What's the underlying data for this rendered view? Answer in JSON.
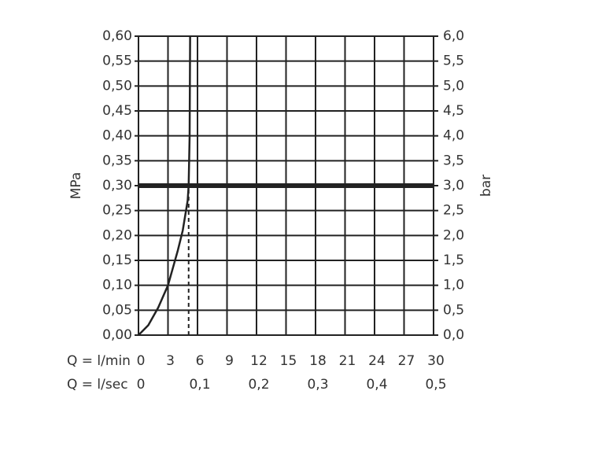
{
  "chart_data": {
    "type": "line",
    "x_label": "Q = l/min",
    "x2_label": "Q = l/sec",
    "y_label": "MPa",
    "y2_label": "bar",
    "xlim": [
      0,
      30
    ],
    "xticks": [
      0,
      3,
      6,
      9,
      12,
      15,
      18,
      21,
      24,
      27,
      30
    ],
    "x2lim": [
      0,
      0.5
    ],
    "x2ticks": [
      0,
      {
        "value": 0.1,
        "label": "0,1"
      },
      {
        "value": 0.2,
        "label": "0,2"
      },
      {
        "value": 0.3,
        "label": "0,3"
      },
      {
        "value": 0.4,
        "label": "0,4"
      },
      {
        "value": 0.5,
        "label": "0,5"
      }
    ],
    "ylim": [
      0,
      0.6
    ],
    "yticks": [
      {
        "value": 0,
        "label": "0,00"
      },
      {
        "value": 0.05,
        "label": "0,05"
      },
      {
        "value": 0.1,
        "label": "0,10"
      },
      {
        "value": 0.15,
        "label": "0,15"
      },
      {
        "value": 0.2,
        "label": "0,20"
      },
      {
        "value": 0.25,
        "label": "0,25"
      },
      {
        "value": 0.3,
        "label": "0,30"
      },
      {
        "value": 0.35,
        "label": "0,35"
      },
      {
        "value": 0.4,
        "label": "0,40"
      },
      {
        "value": 0.45,
        "label": "0,45"
      },
      {
        "value": 0.5,
        "label": "0,50"
      },
      {
        "value": 0.55,
        "label": "0,55"
      },
      {
        "value": 0.6,
        "label": "0,60"
      }
    ],
    "y2lim": [
      0,
      6
    ],
    "y2ticks": [
      {
        "value": 0,
        "label": "0,0"
      },
      {
        "value": 0.5,
        "label": "0,5"
      },
      {
        "value": 1,
        "label": "1,0"
      },
      {
        "value": 1.5,
        "label": "1,5"
      },
      {
        "value": 2,
        "label": "2,0"
      },
      {
        "value": 2.5,
        "label": "2,5"
      },
      {
        "value": 3,
        "label": "3,0"
      },
      {
        "value": 3.5,
        "label": "3,5"
      },
      {
        "value": 4,
        "label": "4,0"
      },
      {
        "value": 4.5,
        "label": "4,5"
      },
      {
        "value": 5,
        "label": "5,0"
      },
      {
        "value": 5.5,
        "label": "5,5"
      },
      {
        "value": 6,
        "label": "6,0"
      }
    ],
    "grid": true,
    "series": [
      {
        "color": "#222222",
        "x": [
          0,
          1,
          2,
          3,
          4,
          4.5,
          5,
          5.1,
          5.2,
          5.25
        ],
        "values": [
          0,
          0.02,
          0.055,
          0.1,
          0.17,
          0.21,
          0.27,
          0.3,
          0.4,
          0.6
        ]
      }
    ],
    "hline": {
      "value": 0.3,
      "color": "#222222"
    },
    "vline": {
      "value": 5.1,
      "color": "#222222",
      "dashed": true
    }
  }
}
